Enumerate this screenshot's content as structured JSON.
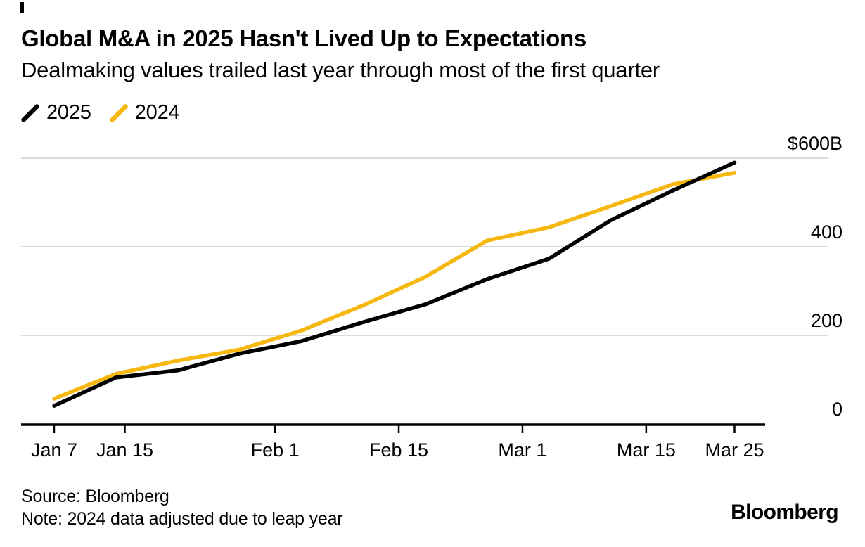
{
  "header": {
    "title": "Global M&A in 2025 Hasn't Lived Up to Expectations",
    "subtitle": "Dealmaking values trailed last year through most of the first quarter"
  },
  "legend": {
    "items": [
      {
        "label": "2025",
        "color": "#000000"
      },
      {
        "label": "2024",
        "color": "#F6B70F"
      }
    ]
  },
  "chart_data": {
    "type": "line",
    "title": "Global M&A in 2025 Hasn't Lived Up to Expectations",
    "subtitle": "Dealmaking values trailed last year through most of the first quarter",
    "unit": "billions of US dollars",
    "x": [
      "Jan 7",
      "Jan 14",
      "Jan 21",
      "Jan 28",
      "Feb 4",
      "Feb 11",
      "Feb 18",
      "Feb 25",
      "Mar 4",
      "Mar 11",
      "Mar 18",
      "Mar 25"
    ],
    "x_day_offsets": [
      0,
      7,
      14,
      21,
      28,
      35,
      42,
      49,
      56,
      63,
      70,
      77
    ],
    "series": [
      {
        "name": "2025",
        "color": "#000000",
        "values": [
          41,
          105,
          121,
          159,
          187,
          230,
          270,
          327,
          373,
          460,
          527,
          590
        ]
      },
      {
        "name": "2024",
        "color": "#F6B70F",
        "values": [
          57,
          113,
          143,
          168,
          211,
          268,
          332,
          414,
          444,
          492,
          541,
          567
        ]
      }
    ],
    "y_ticks": [
      {
        "value": 0,
        "label": "0"
      },
      {
        "value": 200,
        "label": "200"
      },
      {
        "value": 400,
        "label": "400"
      },
      {
        "value": 600,
        "label": "$600B"
      }
    ],
    "x_ticks": [
      {
        "day": 0,
        "label": "Jan 7"
      },
      {
        "day": 8,
        "label": "Jan 15"
      },
      {
        "day": 25,
        "label": "Feb 1"
      },
      {
        "day": 39,
        "label": "Feb 15"
      },
      {
        "day": 53,
        "label": "Mar 1"
      },
      {
        "day": 67,
        "label": "Mar 15"
      },
      {
        "day": 77,
        "label": "Mar 25"
      }
    ],
    "ylim": [
      0,
      600
    ],
    "grid": "horizontal",
    "legend_position": "top-left"
  },
  "footer": {
    "source": "Source: Bloomberg",
    "note": "Note: 2024 data adjusted due to leap year",
    "logo": "Bloomberg"
  }
}
